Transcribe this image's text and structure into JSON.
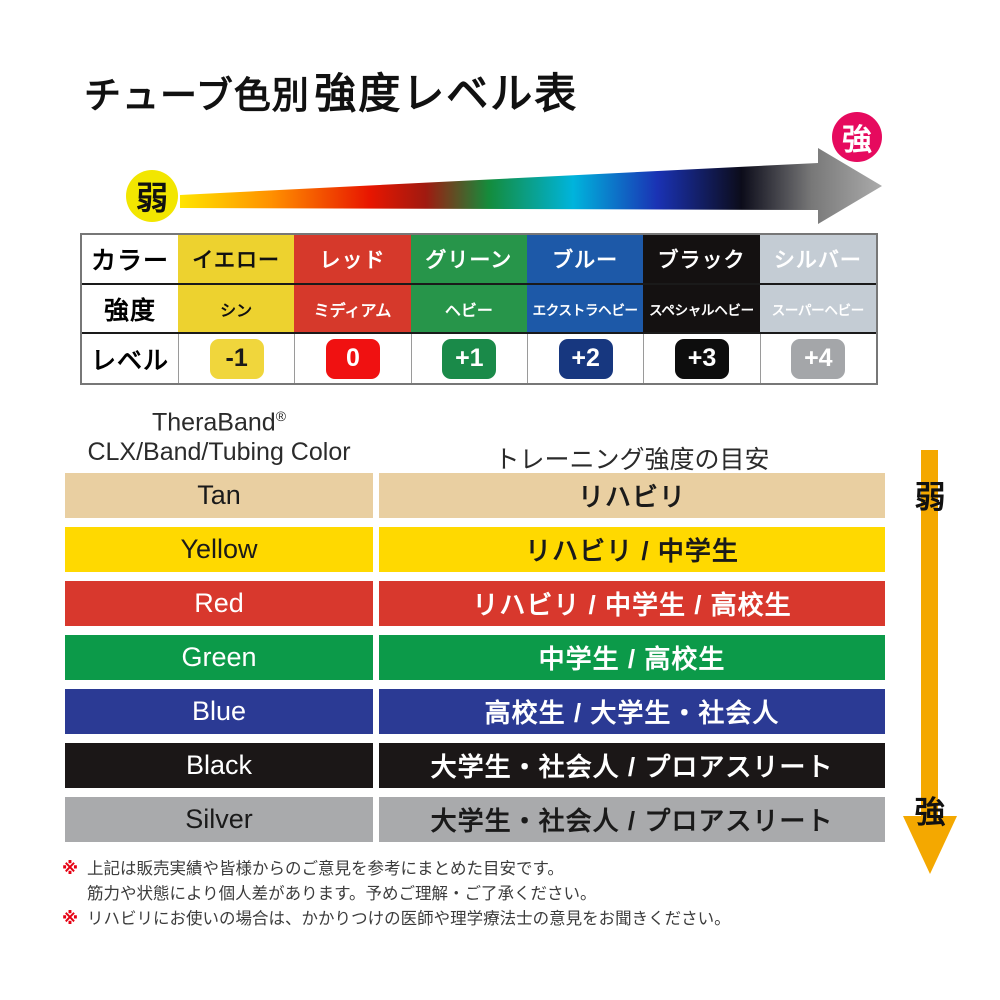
{
  "title": {
    "part1": "チューブ色別",
    "part2": "強度レベル表"
  },
  "scale": {
    "weak": "弱",
    "strong": "強",
    "weak_bg": "#f2e600",
    "strong_bg": "#e60a5e"
  },
  "gradient": {
    "stops": [
      "#ffe400",
      "#ff9000",
      "#e81600",
      "#a01a10",
      "#148c3c",
      "#00b4dc",
      "#1a32b4",
      "#0c0c1a",
      "#787878",
      "#ababab"
    ],
    "offsets": [
      0,
      0.13,
      0.27,
      0.35,
      0.44,
      0.56,
      0.68,
      0.8,
      0.9,
      1
    ]
  },
  "level_table": {
    "row_labels": {
      "color": "カラー",
      "strength": "強度",
      "level": "レベル"
    },
    "columns": [
      {
        "name": "イエロー",
        "strength": "シン",
        "level": "-1",
        "bg": "#edd22f",
        "text": "#111111",
        "badge_bg": "#f0d63c",
        "badge_text": "#1a1a1a"
      },
      {
        "name": "レッド",
        "strength": "ミディアム",
        "level": "0",
        "bg": "#d6392b",
        "text": "#ffffff",
        "badge_bg": "#f01111",
        "badge_text": "#ffffff"
      },
      {
        "name": "グリーン",
        "strength": "ヘビー",
        "level": "+1",
        "bg": "#27954a",
        "text": "#ffffff",
        "badge_bg": "#1a8a49",
        "badge_text": "#ffffff"
      },
      {
        "name": "ブルー",
        "strength": "エクストラヘビー",
        "level": "+2",
        "bg": "#1d59a8",
        "text": "#ffffff",
        "badge_bg": "#17377f",
        "badge_text": "#ffffff"
      },
      {
        "name": "ブラック",
        "strength": "スペシャルヘビー",
        "level": "+3",
        "bg": "#141111",
        "text": "#ffffff",
        "badge_bg": "#0d0d0d",
        "badge_text": "#ffffff"
      },
      {
        "name": "シルバー",
        "strength": "スーパーヘビー",
        "level": "+4",
        "bg": "#c4ccd4",
        "text": "#ffffff",
        "badge_bg": "#a4a6a9",
        "badge_text": "#ffffff"
      }
    ]
  },
  "band_table": {
    "header_left_brand": "TheraBand",
    "header_left_reg": "®",
    "header_left_line2": "CLX/Band/Tubing Color",
    "header_right": "トレーニング強度の目安",
    "rows": [
      {
        "color_name": "Tan",
        "guide": "リハビリ",
        "bg": "#e9cfa1",
        "text": "#1a1a1a"
      },
      {
        "color_name": "Yellow",
        "guide": "リハビリ / 中学生",
        "bg": "#ffd900",
        "text": "#1a1a1a"
      },
      {
        "color_name": "Red",
        "guide": "リハビリ / 中学生 / 高校生",
        "bg": "#d8382d",
        "text": "#ffffff"
      },
      {
        "color_name": "Green",
        "guide": "中学生 / 高校生",
        "bg": "#0c9a49",
        "text": "#ffffff"
      },
      {
        "color_name": "Blue",
        "guide": "高校生 / 大学生・社会人",
        "bg": "#2b3a94",
        "text": "#ffffff"
      },
      {
        "color_name": "Black",
        "guide": "大学生・社会人 / プロアスリート",
        "bg": "#1b1717",
        "text": "#ffffff"
      },
      {
        "color_name": "Silver",
        "guide": "大学生・社会人 / プロアスリート",
        "bg": "#a9aaac",
        "text": "#1a1a1a"
      }
    ]
  },
  "vertical_scale": {
    "weak": "弱",
    "strong": "強",
    "arrow_color": "#f4a800"
  },
  "notes": {
    "marker_color": "#e60012",
    "lines": [
      {
        "marker": "※",
        "text": "上記は販売実績や皆様からのご意見を参考にまとめた目安です。"
      },
      {
        "marker": "",
        "text": "筋力や状態により個人差があります。予めご理解・ご了承ください。"
      },
      {
        "marker": "※",
        "text": "リハビリにお使いの場合は、かかりつけの医師や理学療法士の意見をお聞きください。"
      }
    ]
  }
}
